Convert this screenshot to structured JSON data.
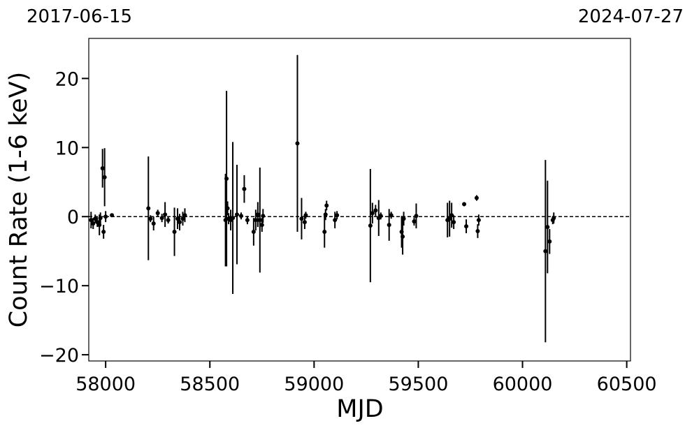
{
  "chart_data": {
    "type": "errorbar",
    "annotations": [
      "2017-06-15",
      "2024-07-27"
    ],
    "xlabel": "MJD",
    "ylabel": "Count Rate (1-6 keV)",
    "xlim": [
      57919,
      60518
    ],
    "ylim": [
      -20.9,
      25.8
    ],
    "xticks": [
      58000,
      58500,
      59000,
      59500,
      60000,
      60500
    ],
    "yticks": [
      {
        "value": -20,
        "label": "−20"
      },
      {
        "value": -10,
        "label": "−10"
      },
      0,
      10,
      20
    ],
    "hline": 0,
    "series": [
      {
        "color": "#000000",
        "x": [
          57930,
          57940,
          57950,
          57960,
          57970,
          57975,
          57985,
          57990,
          57995,
          58000,
          58030,
          58205,
          58215,
          58230,
          58250,
          58270,
          58285,
          58300,
          58330,
          58345,
          58355,
          58370,
          58380,
          58575,
          58580,
          58585,
          58590,
          58600,
          58610,
          58630,
          58650,
          58665,
          58680,
          58710,
          58720,
          58730,
          58740,
          58750,
          58755,
          58920,
          58940,
          58955,
          58960,
          59050,
          59055,
          59060,
          59100,
          59110,
          59270,
          59280,
          59295,
          59310,
          59320,
          59360,
          59370,
          59420,
          59425,
          59430,
          59480,
          59490,
          59640,
          59650,
          59660,
          59670,
          59720,
          59730,
          59780,
          59785,
          59790,
          60110,
          60120,
          60130,
          60145,
          60150
        ],
        "values": [
          -0.5,
          -1.0,
          -0.3,
          -0.8,
          -1.2,
          -0.2,
          7.0,
          -2.2,
          5.7,
          0.0,
          0.2,
          1.2,
          -0.3,
          -1.0,
          0.5,
          -0.2,
          0.3,
          -0.5,
          -2.2,
          -0.3,
          -0.8,
          -0.3,
          0.2,
          -0.5,
          5.5,
          1.2,
          -0.3,
          -0.5,
          -0.2,
          0.3,
          0.1,
          4.0,
          -0.5,
          -2.2,
          -0.5,
          0.3,
          -0.5,
          -1.2,
          0.1,
          10.6,
          -0.3,
          -0.8,
          0.2,
          -2.2,
          0.3,
          1.6,
          -0.5,
          0.2,
          -1.3,
          0.5,
          0.9,
          -0.2,
          0.1,
          -1.2,
          0.2,
          -2.2,
          -2.9,
          -0.3,
          -0.7,
          0.1,
          -0.5,
          -0.3,
          0.2,
          -0.8,
          1.8,
          -1.4,
          2.7,
          -2.1,
          -0.5,
          -5.0,
          -1.5,
          -3.6,
          -0.5,
          -0.2
        ],
        "errors": [
          1.2,
          0.8,
          0.6,
          0.7,
          1.5,
          0.8,
          2.8,
          1.0,
          4.2,
          0.8,
          0.2,
          7.5,
          0.5,
          1.0,
          0.5,
          0.6,
          1.8,
          0.5,
          3.5,
          1.5,
          1.2,
          1.0,
          1.0,
          6.7,
          12.7,
          1.0,
          0.8,
          1.5,
          11.0,
          7.2,
          0.5,
          2.0,
          0.6,
          2.0,
          1.5,
          1.8,
          7.6,
          1.0,
          1.0,
          12.8,
          3.0,
          1.0,
          0.5,
          2.3,
          0.8,
          0.7,
          1.2,
          0.6,
          8.2,
          1.5,
          0.8,
          2.6,
          0.5,
          2.3,
          0.5,
          2.3,
          2.6,
          1.0,
          0.6,
          1.8,
          2.5,
          2.6,
          1.8,
          1.0,
          0.3,
          1.0,
          0.4,
          1.0,
          0.8,
          13.2,
          6.7,
          1.8,
          0.6,
          0.8
        ]
      }
    ]
  }
}
